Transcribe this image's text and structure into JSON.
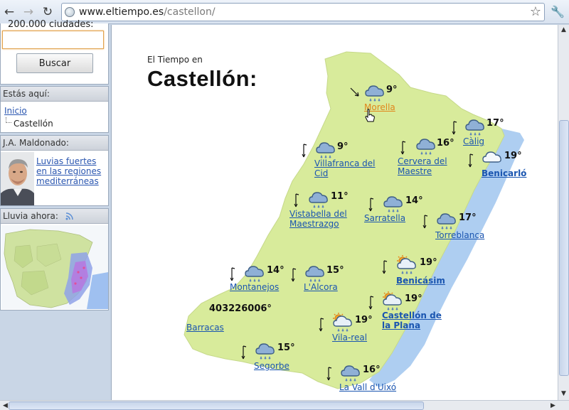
{
  "browser": {
    "url_host": "www.eltiempo.es",
    "url_path": "/castellon/"
  },
  "sidebar": {
    "cities_count": "200.000 ciudades:",
    "search_placeholder": "",
    "search_button": "Buscar",
    "here_title": "Estás aquí:",
    "breadcrumb_home": "Inicio",
    "breadcrumb_current": "Castellón",
    "author_title": "J.A. Maldonado:",
    "author_link": "Luvias fuertes en las regiones mediterráneas",
    "rain_title": "Lluvia ahora:"
  },
  "main": {
    "title_small": "El Tiempo en",
    "title_big": "Castellón:",
    "station_code": "403226006°"
  },
  "locations": [
    {
      "name": "Morella",
      "temp": "9°",
      "icon": "rain-cloud-icon"
    },
    {
      "name": "Càlig",
      "temp": "17°",
      "icon": "rain-cloud-icon"
    },
    {
      "name": "Cervera del Maestre",
      "temp": "16°",
      "icon": "rain-cloud-icon"
    },
    {
      "name": "Benicarló",
      "temp": "19°",
      "icon": "cloud-icon"
    },
    {
      "name": "Villafranca del Cid",
      "temp": "9°",
      "icon": "rain-cloud-icon"
    },
    {
      "name": "Vistabella del Maestrazgo",
      "temp": "11°",
      "icon": "rain-cloud-icon"
    },
    {
      "name": "Sarratella",
      "temp": "14°",
      "icon": "rain-cloud-icon"
    },
    {
      "name": "Torreblanca",
      "temp": "17°",
      "icon": "rain-cloud-icon"
    },
    {
      "name": "Montanejos",
      "temp": "14°",
      "icon": "rain-cloud-icon"
    },
    {
      "name": "L'Alcora",
      "temp": "15°",
      "icon": "rain-cloud-icon"
    },
    {
      "name": "Benicásim",
      "temp": "19°",
      "icon": "sun-cloud-rain-icon"
    },
    {
      "name": "Castellón de la Plana",
      "temp": "19°",
      "icon": "sun-cloud-rain-icon"
    },
    {
      "name": "Vila-real",
      "temp": "19°",
      "icon": "sun-cloud-rain-icon"
    },
    {
      "name": "Barracas",
      "temp": "",
      "icon": ""
    },
    {
      "name": "Segorbe",
      "temp": "15°",
      "icon": "rain-cloud-icon"
    },
    {
      "name": "La Vall d'Uixó",
      "temp": "16°",
      "icon": "rain-cloud-icon"
    }
  ],
  "colors": {
    "land": "#d8eb9b",
    "sea": "#a5c9ef",
    "link": "#1a55b0",
    "link_hover": "#e0861c"
  }
}
